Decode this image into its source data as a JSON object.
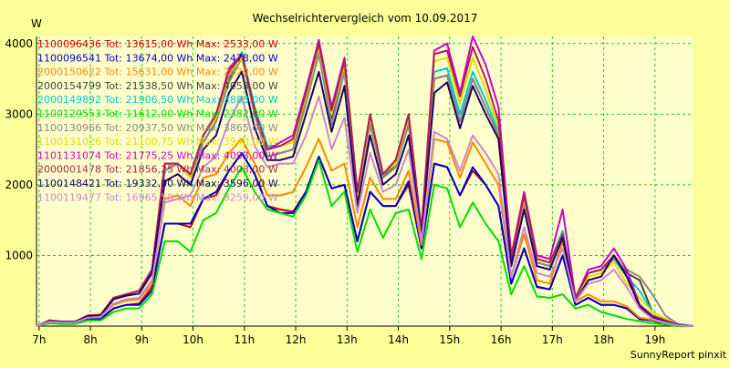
{
  "chart_data": {
    "type": "line",
    "title": "Wechselrichtervergleich vom 10.09.2017",
    "ylabel": "W",
    "xlabel": "",
    "footer": "SunnyReport pinxit",
    "ylim": [
      0,
      4100
    ],
    "xlim": [
      6.95,
      19.75
    ],
    "grid": true,
    "legend_position": "top-left",
    "y_ticks": [
      {
        "value": 1000,
        "label": "1000"
      },
      {
        "value": 2000,
        "label": "2000"
      },
      {
        "value": 3000,
        "label": "3000"
      },
      {
        "value": 4000,
        "label": "4000"
      }
    ],
    "x_ticks": [
      {
        "value": 7,
        "label": "7h"
      },
      {
        "value": 8,
        "label": "8h"
      },
      {
        "value": 9,
        "label": "9h"
      },
      {
        "value": 10,
        "label": "10h"
      },
      {
        "value": 11,
        "label": "11h"
      },
      {
        "value": 12,
        "label": "12h"
      },
      {
        "value": 13,
        "label": "13h"
      },
      {
        "value": 14,
        "label": "14h"
      },
      {
        "value": 15,
        "label": "15h"
      },
      {
        "value": 16,
        "label": "16h"
      },
      {
        "value": 17,
        "label": "17h"
      },
      {
        "value": 18,
        "label": "18h"
      },
      {
        "value": 19,
        "label": "19h"
      }
    ],
    "x": [
      6.95,
      7.2,
      7.45,
      7.7,
      7.95,
      8.2,
      8.45,
      8.7,
      8.95,
      9.2,
      9.45,
      9.7,
      9.95,
      10.2,
      10.45,
      10.7,
      10.95,
      11.2,
      11.45,
      11.7,
      11.95,
      12.2,
      12.45,
      12.7,
      12.95,
      13.2,
      13.45,
      13.7,
      13.95,
      14.2,
      14.45,
      14.7,
      14.95,
      15.2,
      15.45,
      15.7,
      15.95,
      16.2,
      16.45,
      16.7,
      16.95,
      17.2,
      17.45,
      17.7,
      17.95,
      18.2,
      18.45,
      18.7,
      18.95,
      19.2,
      19.45,
      19.75
    ],
    "series": [
      {
        "label": "1100096436 Tot: 13615,00 Wh Max: 2533,00 W",
        "color": "#cc0000",
        "values": [
          0,
          50,
          40,
          40,
          100,
          100,
          250,
          300,
          320,
          550,
          1450,
          1450,
          1400,
          1800,
          1850,
          2200,
          2450,
          2150,
          1700,
          1650,
          1620,
          1900,
          2400,
          1950,
          2000,
          1200,
          1900,
          1700,
          1700,
          2000,
          1100,
          2300,
          2250,
          1850,
          2200,
          2000,
          1700,
          600,
          1100,
          550,
          520,
          1000,
          300,
          400,
          300,
          300,
          250,
          100,
          80,
          30,
          0,
          0
        ]
      },
      {
        "label": "1100096541 Tot: 13674,00 Wh Max: 2478,00 W",
        "color": "#0000cc",
        "values": [
          0,
          50,
          40,
          40,
          100,
          100,
          250,
          300,
          300,
          500,
          1450,
          1450,
          1450,
          1800,
          1900,
          2200,
          2450,
          2150,
          1700,
          1600,
          1600,
          1900,
          2400,
          1950,
          2000,
          1200,
          1900,
          1700,
          1700,
          2050,
          1100,
          2300,
          2250,
          1850,
          2250,
          2000,
          1700,
          600,
          1100,
          560,
          520,
          1000,
          300,
          400,
          300,
          300,
          250,
          100,
          80,
          30,
          0,
          0
        ]
      },
      {
        "label": "2000150622 Tot: 15631,00 Wh Max: 2629,00 W",
        "color": "#ff8800",
        "values": [
          0,
          60,
          50,
          50,
          120,
          130,
          300,
          360,
          380,
          600,
          1800,
          1850,
          1700,
          2100,
          2150,
          2450,
          2650,
          2300,
          1850,
          1850,
          1900,
          2250,
          2650,
          2200,
          2300,
          1400,
          2100,
          1800,
          1800,
          2200,
          1150,
          2650,
          2600,
          2100,
          2600,
          2300,
          2000,
          700,
          1300,
          650,
          600,
          1200,
          350,
          450,
          350,
          350,
          280,
          120,
          90,
          40,
          0,
          0
        ]
      },
      {
        "label": "2000154799 Tot: 21538,50 Wh Max: 4053,00 W",
        "color": "#444444",
        "values": [
          0,
          80,
          60,
          60,
          150,
          160,
          400,
          450,
          500,
          800,
          2200,
          2300,
          2100,
          2600,
          2900,
          3500,
          3850,
          3000,
          2400,
          2450,
          2500,
          3200,
          4050,
          2900,
          3700,
          1800,
          2900,
          2100,
          2300,
          2900,
          1300,
          3500,
          3550,
          2900,
          3500,
          3100,
          2700,
          900,
          1750,
          900,
          850,
          1300,
          400,
          750,
          800,
          1000,
          750,
          650,
          200,
          100,
          20,
          0
        ]
      },
      {
        "label": "2000149892 Tot: 21906,50 Wh Max: 3883,00 W",
        "color": "#00cccc",
        "values": [
          0,
          80,
          60,
          60,
          150,
          160,
          400,
          450,
          500,
          800,
          2200,
          2300,
          2100,
          2700,
          2950,
          3550,
          3880,
          3100,
          2550,
          2550,
          2650,
          3300,
          3880,
          3050,
          3650,
          1850,
          2900,
          2100,
          2250,
          2950,
          1350,
          3600,
          3650,
          3000,
          3600,
          3200,
          2750,
          950,
          1800,
          950,
          900,
          1350,
          400,
          750,
          800,
          950,
          700,
          500,
          200,
          100,
          20,
          0
        ]
      },
      {
        "label": "1100129553 Tot: 11612,00 Wh Max: 2382,00 W",
        "color": "#00dd00",
        "values": [
          0,
          40,
          30,
          30,
          80,
          80,
          200,
          250,
          250,
          450,
          1200,
          1200,
          1050,
          1500,
          1600,
          1950,
          2250,
          1900,
          1650,
          1600,
          1550,
          1850,
          2350,
          1700,
          1900,
          1050,
          1650,
          1250,
          1600,
          1650,
          950,
          2000,
          1950,
          1400,
          1750,
          1450,
          1200,
          450,
          850,
          420,
          400,
          450,
          250,
          300,
          200,
          150,
          100,
          70,
          40,
          20,
          0,
          0
        ]
      },
      {
        "label": "1100130966 Tot: 20937,50 Wh Max: 3865,00 W",
        "color": "#888888",
        "values": [
          0,
          80,
          60,
          60,
          150,
          160,
          400,
          450,
          500,
          800,
          2200,
          2300,
          2100,
          2600,
          2900,
          3450,
          3800,
          3000,
          2400,
          2450,
          2500,
          3150,
          3850,
          2850,
          3600,
          1800,
          2850,
          2100,
          2250,
          2850,
          1300,
          3500,
          3550,
          2900,
          3500,
          3100,
          2700,
          900,
          1750,
          900,
          850,
          1300,
          400,
          750,
          800,
          950,
          800,
          700,
          450,
          150,
          30,
          0
        ]
      },
      {
        "label": "1100131026 Tot: 21100,75 Wh Max: 3940,00 W",
        "color": "#dddd00",
        "values": [
          0,
          80,
          60,
          60,
          150,
          160,
          400,
          450,
          500,
          800,
          2300,
          2300,
          2100,
          2700,
          2950,
          3550,
          3800,
          3050,
          2500,
          2550,
          2600,
          3250,
          3950,
          3000,
          3700,
          1850,
          2950,
          2150,
          2300,
          2950,
          1350,
          3750,
          3800,
          3150,
          3800,
          3350,
          2800,
          950,
          1800,
          950,
          900,
          1300,
          400,
          700,
          750,
          900,
          600,
          400,
          200,
          100,
          20,
          0
        ]
      },
      {
        "label": "1101131074 Tot: 21775,25 Wh Max: 4093,00 W",
        "color": "#cc00cc",
        "values": [
          0,
          80,
          60,
          60,
          150,
          160,
          400,
          450,
          500,
          800,
          2300,
          2300,
          2150,
          2700,
          3000,
          3650,
          3850,
          3050,
          2500,
          2600,
          2700,
          3350,
          4050,
          3100,
          3800,
          1900,
          3000,
          2150,
          2350,
          3000,
          1350,
          3900,
          4000,
          3300,
          4100,
          3700,
          3100,
          1000,
          1900,
          1000,
          950,
          1650,
          400,
          800,
          850,
          1100,
          800,
          300,
          150,
          80,
          20,
          0
        ]
      },
      {
        "label": "2000001478 Tot: 21856,25 Wh Max: 4003,00 W",
        "color": "#aa2255",
        "values": [
          0,
          80,
          60,
          60,
          150,
          160,
          400,
          450,
          500,
          800,
          2300,
          2300,
          2150,
          2700,
          3000,
          3600,
          3850,
          3050,
          2500,
          2550,
          2650,
          3300,
          4000,
          3050,
          3750,
          1900,
          3000,
          2150,
          2350,
          3000,
          1350,
          3850,
          3900,
          3250,
          3950,
          3500,
          2900,
          950,
          1850,
          950,
          900,
          1300,
          400,
          750,
          800,
          1000,
          700,
          300,
          150,
          80,
          20,
          0
        ]
      },
      {
        "label": "1100148421 Tot: 19332,00 Wh Max: 3596,00 W",
        "color": "#220066",
        "values": [
          0,
          70,
          60,
          60,
          140,
          150,
          380,
          430,
          460,
          750,
          2050,
          2150,
          2000,
          2500,
          2700,
          3300,
          3600,
          2800,
          2350,
          2350,
          2400,
          3000,
          3600,
          2750,
          3400,
          1700,
          2700,
          2000,
          2150,
          2700,
          1250,
          3300,
          3450,
          2800,
          3400,
          3000,
          2650,
          850,
          1650,
          850,
          800,
          1250,
          350,
          650,
          700,
          1000,
          700,
          280,
          120,
          60,
          15,
          0
        ]
      },
      {
        "label": "1100119477 Tot: 16965,50 Wh Max: 3259,00 W",
        "color": "#cc88cc",
        "values": [
          0,
          60,
          50,
          50,
          120,
          130,
          320,
          380,
          400,
          650,
          1750,
          1800,
          1850,
          2250,
          2400,
          2900,
          3250,
          2550,
          2250,
          2300,
          2300,
          2700,
          3250,
          2500,
          2950,
          1600,
          2450,
          1900,
          2000,
          2500,
          1200,
          2750,
          2650,
          2200,
          2700,
          2450,
          2150,
          700,
          1400,
          750,
          700,
          1100,
          350,
          600,
          650,
          800,
          550,
          250,
          100,
          50,
          10,
          0
        ]
      }
    ]
  }
}
